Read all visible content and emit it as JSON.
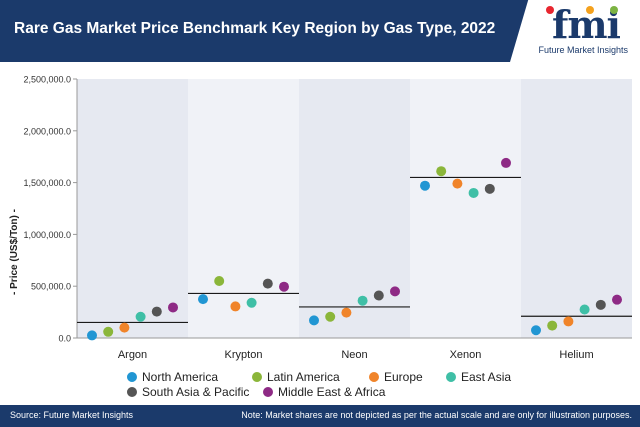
{
  "header": {
    "title": "Rare Gas Market Price Benchmark Key Region by Gas Type, 2022",
    "logo_text": "fmi",
    "logo_tagline": "Future Market Insights"
  },
  "footer": {
    "source": "Source: Future Market Insights",
    "note": "Note: Market shares are not depicted as per the actual scale and are only for illustration purposes."
  },
  "colors": {
    "header_bg": "#1b3a6b",
    "band_dark": "#e6e9f1",
    "band_light": "#f0f2f7",
    "logo_dot_1": "#e8262f",
    "logo_dot_2": "#f4a11d",
    "logo_dot_3": "#7cb342"
  },
  "chart_data": {
    "type": "scatter",
    "ylabel": "- Price (US$/Ton) -",
    "ylim": [
      0,
      2500000
    ],
    "yticks": [
      "0.0",
      "500,000.0",
      "1,000,000.0",
      "1,500,000.0",
      "2,000,000.0",
      "2,500,000.0"
    ],
    "ytick_values": [
      0,
      500000,
      1000000,
      1500000,
      2000000,
      2500000
    ],
    "grid": false,
    "legend_position": "bottom",
    "categories": [
      "Argon",
      "Krypton",
      "Neon",
      "Xenon",
      "Helium"
    ],
    "benchmark_lines": [
      150000,
      430000,
      300000,
      1550000,
      210000
    ],
    "series": [
      {
        "name": "North America",
        "color": "#2196d3",
        "values": [
          25000,
          375000,
          170000,
          1470000,
          75000
        ]
      },
      {
        "name": "Latin America",
        "color": "#8bb63a",
        "values": [
          60000,
          550000,
          205000,
          1610000,
          120000
        ]
      },
      {
        "name": "Europe",
        "color": "#f0842a",
        "values": [
          100000,
          305000,
          245000,
          1490000,
          160000
        ]
      },
      {
        "name": "East Asia",
        "color": "#3fbfa6",
        "values": [
          205000,
          340000,
          360000,
          1400000,
          275000
        ]
      },
      {
        "name": "South Asia & Pacific",
        "color": "#555555",
        "values": [
          255000,
          525000,
          410000,
          1440000,
          320000
        ]
      },
      {
        "name": "Middle East & Africa",
        "color": "#8e2a85",
        "values": [
          295000,
          495000,
          450000,
          1690000,
          370000
        ]
      }
    ]
  }
}
